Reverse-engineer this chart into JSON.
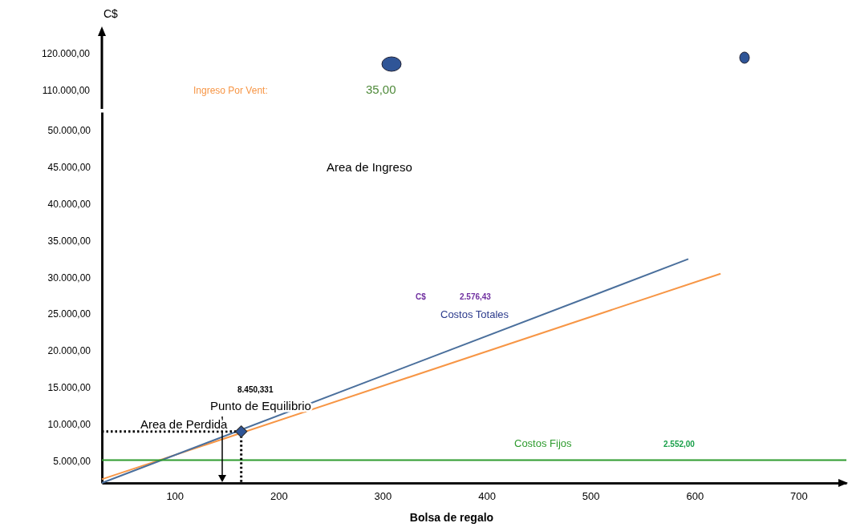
{
  "chart_data": [
    {
      "type": "other",
      "annotations": [
        "120.000,00",
        "110.000,00",
        "Ingreso Por Vent:",
        "35,00"
      ]
    },
    {
      "type": "line",
      "xlabel": "Bolsa de regalo",
      "ylabel": "C$",
      "xlim": [
        30,
        746
      ],
      "xticks": [
        100,
        200,
        300,
        400,
        500,
        600,
        700
      ],
      "ylim": [
        2000,
        52500
      ],
      "yticks": [
        {
          "value": 5000,
          "label": "5.000,00"
        },
        {
          "value": 10000,
          "label": "10.000,00"
        },
        {
          "value": 15000,
          "label": "15.000,00"
        },
        {
          "value": 20000,
          "label": "20.000,00"
        },
        {
          "value": 25000,
          "label": "25.000,00"
        },
        {
          "value": 30000,
          "label": "30.000,00"
        },
        {
          "value": 35000,
          "label": "35.000,00"
        },
        {
          "value": 40000,
          "label": "40.000,00"
        },
        {
          "value": 45000,
          "label": "45.000,00"
        },
        {
          "value": 50000,
          "label": "50.000,00"
        }
      ],
      "grid": false,
      "series": [
        {
          "color": "#f79646",
          "x": [
            30,
            625
          ],
          "values": [
            2500,
            30500
          ]
        },
        {
          "name": "Costos Totales",
          "color": "#4a6f9c",
          "x": [
            30,
            594
          ],
          "values": [
            2000,
            32500
          ]
        },
        {
          "name": "Costos Fijos",
          "color": "#2e9b2e",
          "x": [
            30,
            746
          ],
          "values": [
            5100,
            5100
          ]
        },
        {
          "color": "#000000",
          "line_style": "dotted",
          "x": [
            30,
            164
          ],
          "values": [
            9000,
            9000
          ]
        },
        {
          "color": "#000000",
          "line_style": "dotted",
          "x": [
            164,
            164
          ],
          "values": [
            9000,
            2000
          ]
        },
        {
          "type": "scatter",
          "marker": "diamond",
          "color": "#2f5597",
          "x": [
            164
          ],
          "values": [
            9000
          ]
        }
      ],
      "annotations": [
        "Area de Ingreso",
        "C$",
        "2.576,43",
        "8.450,331",
        "Punto de Equilibrio",
        "Area de Perdida",
        "2.552,00"
      ]
    }
  ]
}
